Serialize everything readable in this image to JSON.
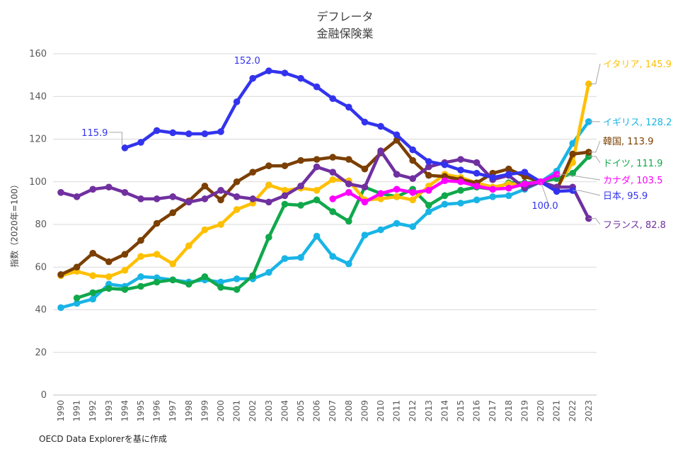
{
  "chart_data": {
    "type": "line",
    "title": "デフレータ",
    "subtitle": "金融保険業",
    "ylabel": "指数（2020年=100）",
    "source": "OECD Data Explorerを基に作成",
    "ylim": [
      0,
      160
    ],
    "yticks": [
      0,
      20,
      40,
      60,
      80,
      100,
      120,
      140,
      160
    ],
    "grid": true,
    "x": [
      1990,
      1991,
      1992,
      1993,
      1994,
      1995,
      1996,
      1997,
      1998,
      1999,
      2000,
      2001,
      2002,
      2003,
      2004,
      2005,
      2006,
      2007,
      2008,
      2009,
      2010,
      2011,
      2012,
      2013,
      2014,
      2015,
      2016,
      2017,
      2018,
      2019,
      2020,
      2021,
      2022,
      2023
    ],
    "series": [
      {
        "name": "イギリス",
        "color": "#19B4E6",
        "values": [
          41,
          43,
          45,
          52,
          51,
          55.5,
          55,
          54,
          53,
          54,
          53,
          54.5,
          54.5,
          57.5,
          64,
          64.5,
          74.5,
          65,
          61.5,
          75,
          77.5,
          80.5,
          79,
          86,
          89.5,
          90,
          91.5,
          93,
          93.5,
          96.5,
          100,
          105,
          118,
          128.2
        ]
      },
      {
        "name": "ドイツ",
        "color": "#10A84B",
        "values": [
          null,
          45.5,
          48,
          50,
          49.5,
          51,
          53,
          54,
          52,
          55.5,
          50.5,
          49.5,
          56,
          74,
          89.5,
          89,
          91.5,
          86,
          81.5,
          97.5,
          94.5,
          93,
          96.5,
          89,
          93.5,
          96,
          97.5,
          96.5,
          99.5,
          99.5,
          100,
          101.5,
          104,
          111.9
        ]
      },
      {
        "name": "イタリア",
        "color": "#FFC000",
        "values": [
          56,
          58,
          56,
          55.5,
          58.5,
          65,
          66,
          61.5,
          70,
          77.5,
          80,
          87,
          90,
          98.5,
          96,
          97,
          96,
          101,
          100.5,
          91.5,
          92,
          93,
          91.5,
          98,
          103.5,
          102,
          99.5,
          97.5,
          99,
          99,
          100,
          97,
          109,
          145.9
        ]
      },
      {
        "name": "韓国",
        "color": "#7B3F00",
        "values": [
          56.5,
          60,
          66.5,
          62.5,
          66,
          72.5,
          80.5,
          85.5,
          91,
          98,
          91.5,
          100,
          104.5,
          107.5,
          107.5,
          110,
          110.5,
          111.5,
          110.5,
          106,
          113.5,
          119.5,
          110,
          103,
          102.5,
          101,
          99.5,
          104,
          106,
          102.5,
          100,
          96,
          113,
          113.9
        ]
      },
      {
        "name": "フランス",
        "color": "#7030A0",
        "values": [
          95,
          93,
          96.5,
          97.5,
          95,
          92,
          92,
          93,
          90.5,
          92,
          96,
          93,
          92,
          90.5,
          93.5,
          98,
          107,
          104.5,
          99,
          97.5,
          114.5,
          103.5,
          101.5,
          107,
          109,
          110.5,
          109,
          101,
          103,
          97,
          100,
          97.5,
          97.5,
          82.8
        ]
      },
      {
        "name": "日本",
        "color": "#3333EE",
        "values": [
          null,
          null,
          null,
          null,
          115.9,
          118.5,
          124,
          123,
          122.5,
          122.5,
          123.5,
          137.5,
          148.5,
          152,
          151,
          148.5,
          144.5,
          139,
          135,
          128,
          126,
          122,
          115,
          109.5,
          108,
          105.5,
          104,
          102,
          103.5,
          104.5,
          100,
          95.5,
          95.9,
          null
        ]
      },
      {
        "name": "カナダ",
        "color": "#FF00FF",
        "values": [
          null,
          null,
          null,
          null,
          null,
          null,
          null,
          null,
          null,
          null,
          null,
          null,
          null,
          null,
          null,
          null,
          null,
          92,
          95,
          90.5,
          94.5,
          96.5,
          95,
          96,
          100.5,
          100,
          98,
          96.5,
          97,
          99,
          100,
          103.5,
          null,
          null
        ]
      }
    ],
    "end_labels": [
      {
        "series": "イタリア",
        "text": "イタリア, 145.9"
      },
      {
        "series": "イギリス",
        "text": "イギリス, 128.2"
      },
      {
        "series": "韓国",
        "text": "韓国, 113.9"
      },
      {
        "series": "ドイツ",
        "text": "ドイツ, 111.9"
      },
      {
        "series": "カナダ",
        "text": "カナダ, 103.5"
      },
      {
        "series": "日本",
        "text": "日本, 95.9"
      },
      {
        "series": "フランス",
        "text": "フランス, 82.8"
      }
    ],
    "point_labels": [
      {
        "series": "日本",
        "year": 1994,
        "text": "115.9"
      },
      {
        "series": "日本",
        "year": 2003,
        "text": "152.0"
      },
      {
        "series": "日本",
        "year": 2020,
        "text": "100.0"
      }
    ]
  }
}
